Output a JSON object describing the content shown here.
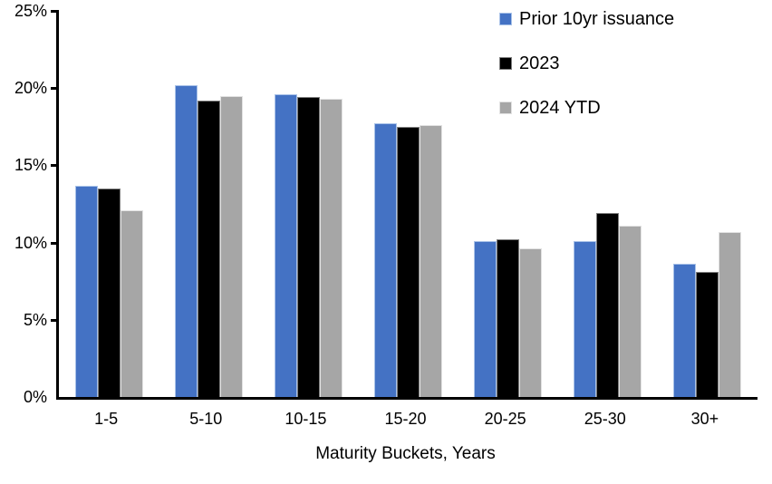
{
  "chart_data": {
    "type": "bar",
    "title": "",
    "categories": [
      "1-5",
      "5-10",
      "10-15",
      "15-20",
      "20-25",
      "25-30",
      "30+"
    ],
    "series": [
      {
        "name": "Prior 10yr issuance",
        "color": "#4472C4",
        "border_color": "#A9C2E8",
        "values": [
          13.7,
          20.2,
          19.6,
          17.7,
          10.1,
          10.1,
          8.6
        ]
      },
      {
        "name": "2023",
        "color": "#000000",
        "border_color": "#7F7F7F",
        "values": [
          13.5,
          19.2,
          19.4,
          17.5,
          10.2,
          11.9,
          8.1
        ]
      },
      {
        "name": "2024 YTD",
        "color": "#A6A6A6",
        "border_color": "#E2E2E2",
        "values": [
          12.1,
          19.5,
          19.3,
          17.6,
          9.6,
          11.1,
          10.7
        ]
      }
    ],
    "xlabel": "Maturity Buckets, Years",
    "ylabel": "",
    "ylim": [
      0,
      25
    ],
    "ytick_values": [
      0,
      5,
      10,
      15,
      20,
      25
    ],
    "ytick_labels": [
      "0%",
      "5%",
      "10%",
      "15%",
      "20%",
      "25%"
    ],
    "legend_position": "top-right",
    "grid": false,
    "axis_color": "#000000",
    "background_color": "#FFFFFF"
  }
}
